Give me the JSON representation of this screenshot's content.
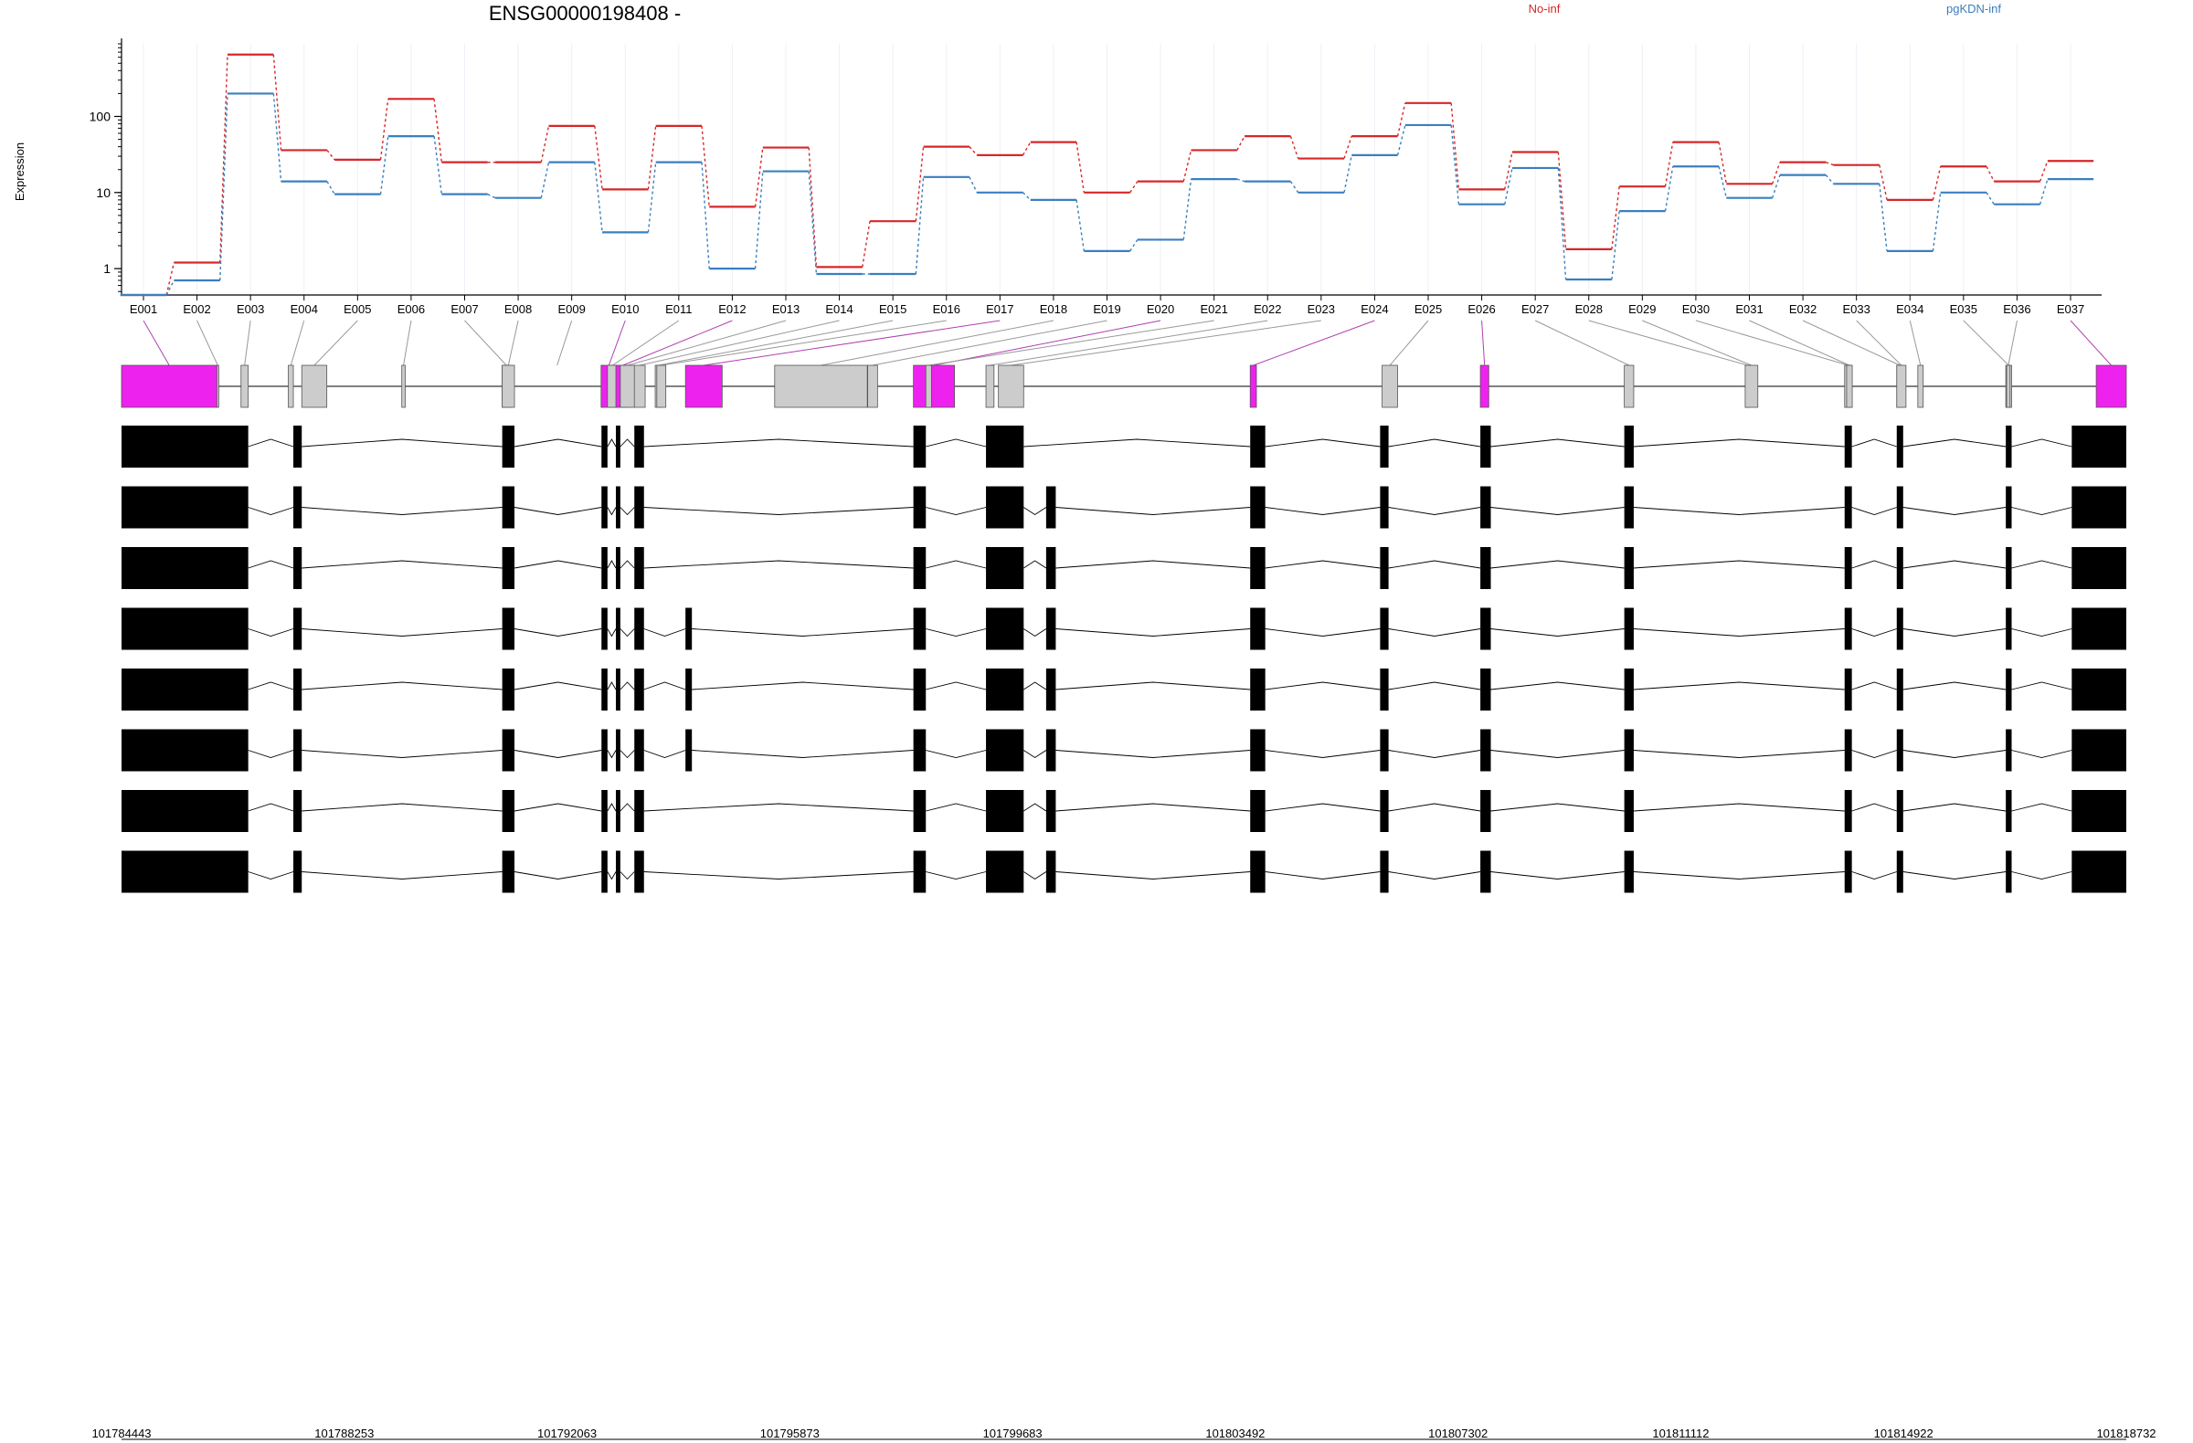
{
  "title": "ENSG00000198408 -",
  "colors": {
    "group1": "#d62728",
    "group2": "#3a7fbf",
    "highlight": "#ee22ee",
    "exon_default": "#cccccc",
    "transcript": "#000000"
  },
  "chart_data": {
    "type": "line",
    "ylabel": "Expression",
    "y_scale": "log",
    "y_ticks": [
      1,
      10,
      100
    ],
    "y_tick_labels": [
      "1",
      "10",
      "100"
    ],
    "legend": [
      {
        "name": "No-inf",
        "color": "#d62728"
      },
      {
        "name": "pgKDN-inf",
        "color": "#3a7fbf"
      }
    ],
    "categories": [
      "E001",
      "E002",
      "E003",
      "E004",
      "E005",
      "E006",
      "E007",
      "E008",
      "E009",
      "E010",
      "E011",
      "E012",
      "E013",
      "E014",
      "E015",
      "E016",
      "E017",
      "E018",
      "E019",
      "E020",
      "E021",
      "E022",
      "E023",
      "E024",
      "E025",
      "E026",
      "E027",
      "E028",
      "E029",
      "E030",
      "E031",
      "E032",
      "E033",
      "E034",
      "E035",
      "E036",
      "E037"
    ],
    "series": [
      {
        "name": "No-inf",
        "color": "#d62728",
        "values": [
          0.45,
          1.2,
          650,
          36,
          27,
          170,
          25,
          25,
          75,
          11,
          75,
          6.5,
          39,
          1.05,
          4.2,
          40,
          31,
          46,
          10,
          14,
          36,
          55,
          28,
          55,
          150,
          11,
          34,
          1.8,
          12,
          46,
          13,
          25,
          23,
          8,
          22,
          14,
          26
        ]
      },
      {
        "name": "pgKDN-inf",
        "color": "#3a7fbf",
        "values": [
          0.45,
          0.7,
          200,
          14,
          9.5,
          55,
          9.5,
          8.5,
          25,
          3,
          25,
          1,
          19,
          0.85,
          0.85,
          16,
          10,
          8,
          1.7,
          2.4,
          15,
          14,
          10,
          31,
          77,
          7,
          21,
          0.72,
          5.7,
          22,
          8.5,
          17,
          13,
          1.7,
          10,
          7,
          15
        ]
      }
    ],
    "exon_start": [
      0.0,
      0.0476,
      0.0596,
      0.0832,
      0.0899,
      0.1398,
      0.1899,
      0.1899,
      0.2394,
      0.2392,
      0.2424,
      0.2466,
      0.2488,
      0.2558,
      0.2662,
      0.267,
      0.2813,
      0.3258,
      0.3722,
      0.395,
      0.4012,
      0.4312,
      0.4374,
      0.563,
      0.6288,
      0.6778,
      0.7496,
      0.8099,
      0.8099,
      0.8595,
      0.8605,
      0.8855,
      0.8855,
      0.896,
      0.9399,
      0.9403,
      0.985
    ],
    "exon_end": [
      0.0476,
      0.0484,
      0.0632,
      0.0857,
      0.1024,
      0.1415,
      0.1941,
      0.196,
      0.1951,
      0.247,
      0.2475,
      0.2536,
      0.2562,
      0.2612,
      0.2694,
      0.2715,
      0.2996,
      0.372,
      0.3771,
      0.4155,
      0.404,
      0.4352,
      0.45,
      0.5661,
      0.6365,
      0.682,
      0.7543,
      0.8123,
      0.8162,
      0.8631,
      0.8633,
      0.8887,
      0.8901,
      0.8987,
      0.9428,
      0.942,
      1.0
    ],
    "highlight_exons": [
      "E001",
      "E010",
      "E012",
      "E017",
      "E020",
      "E024",
      "E026",
      "E037"
    ],
    "genome_start": 101784443,
    "genome_end": 101818732,
    "genome_tick_labels": [
      "101784443",
      "101788253",
      "101792063",
      "101795873",
      "101799683",
      "101803492",
      "101807302",
      "101811112",
      "101814922",
      "101818732"
    ],
    "transcripts": [
      [
        [
          0,
          0.0632
        ],
        [
          0.0857,
          0.0899
        ],
        [
          0.1899,
          0.196
        ],
        [
          0.2394,
          0.2424
        ],
        [
          0.2466,
          0.2488
        ],
        [
          0.2558,
          0.2606
        ],
        [
          0.395,
          0.4012
        ],
        [
          0.4312,
          0.45
        ],
        [
          0.563,
          0.5705
        ],
        [
          0.6278,
          0.632
        ],
        [
          0.6778,
          0.683
        ],
        [
          0.7496,
          0.7543
        ],
        [
          0.8595,
          0.8631
        ],
        [
          0.8855,
          0.8887
        ],
        [
          0.9399,
          0.9428
        ],
        [
          0.9728,
          1.0
        ]
      ],
      [
        [
          0,
          0.0632
        ],
        [
          0.0857,
          0.0899
        ],
        [
          0.1899,
          0.196
        ],
        [
          0.2394,
          0.2424
        ],
        [
          0.2466,
          0.2488
        ],
        [
          0.2558,
          0.2606
        ],
        [
          0.395,
          0.4012
        ],
        [
          0.4312,
          0.45
        ],
        [
          0.4612,
          0.466
        ],
        [
          0.563,
          0.5705
        ],
        [
          0.6278,
          0.632
        ],
        [
          0.6778,
          0.683
        ],
        [
          0.7496,
          0.7543
        ],
        [
          0.8595,
          0.8631
        ],
        [
          0.8855,
          0.8887
        ],
        [
          0.9399,
          0.9428
        ],
        [
          0.9728,
          1.0
        ]
      ],
      [
        [
          0,
          0.0632
        ],
        [
          0.0857,
          0.0899
        ],
        [
          0.1899,
          0.196
        ],
        [
          0.2394,
          0.2424
        ],
        [
          0.2466,
          0.2488
        ],
        [
          0.2558,
          0.2606
        ],
        [
          0.395,
          0.4012
        ],
        [
          0.4312,
          0.45
        ],
        [
          0.4612,
          0.466
        ],
        [
          0.563,
          0.5705
        ],
        [
          0.6278,
          0.632
        ],
        [
          0.6778,
          0.683
        ],
        [
          0.7496,
          0.7543
        ],
        [
          0.8595,
          0.8631
        ],
        [
          0.8855,
          0.8887
        ],
        [
          0.9399,
          0.9428
        ],
        [
          0.9728,
          1.0
        ]
      ],
      [
        [
          0,
          0.0632
        ],
        [
          0.0857,
          0.0899
        ],
        [
          0.1899,
          0.196
        ],
        [
          0.2394,
          0.2424
        ],
        [
          0.2466,
          0.2488
        ],
        [
          0.2558,
          0.2606
        ],
        [
          0.2813,
          0.2845
        ],
        [
          0.395,
          0.4012
        ],
        [
          0.4312,
          0.45
        ],
        [
          0.4612,
          0.466
        ],
        [
          0.563,
          0.5705
        ],
        [
          0.6278,
          0.632
        ],
        [
          0.6778,
          0.683
        ],
        [
          0.7496,
          0.7543
        ],
        [
          0.8595,
          0.8631
        ],
        [
          0.8855,
          0.8887
        ],
        [
          0.9399,
          0.9428
        ],
        [
          0.9728,
          1.0
        ]
      ],
      [
        [
          0,
          0.0632
        ],
        [
          0.0857,
          0.0899
        ],
        [
          0.1899,
          0.196
        ],
        [
          0.2394,
          0.2424
        ],
        [
          0.2466,
          0.2488
        ],
        [
          0.2558,
          0.2606
        ],
        [
          0.2813,
          0.2845
        ],
        [
          0.395,
          0.4012
        ],
        [
          0.4312,
          0.45
        ],
        [
          0.4612,
          0.466
        ],
        [
          0.563,
          0.5705
        ],
        [
          0.6278,
          0.632
        ],
        [
          0.6778,
          0.683
        ],
        [
          0.7496,
          0.7543
        ],
        [
          0.8595,
          0.8631
        ],
        [
          0.8855,
          0.8887
        ],
        [
          0.9399,
          0.9428
        ],
        [
          0.9728,
          1.0
        ]
      ],
      [
        [
          0,
          0.0632
        ],
        [
          0.0857,
          0.0899
        ],
        [
          0.1899,
          0.196
        ],
        [
          0.2394,
          0.2424
        ],
        [
          0.2466,
          0.2488
        ],
        [
          0.2558,
          0.2606
        ],
        [
          0.2813,
          0.2845
        ],
        [
          0.395,
          0.4012
        ],
        [
          0.4312,
          0.45
        ],
        [
          0.4612,
          0.466
        ],
        [
          0.563,
          0.5705
        ],
        [
          0.6278,
          0.632
        ],
        [
          0.6778,
          0.683
        ],
        [
          0.7496,
          0.7543
        ],
        [
          0.8595,
          0.8631
        ],
        [
          0.8855,
          0.8887
        ],
        [
          0.9399,
          0.9428
        ],
        [
          0.9728,
          1.0
        ]
      ],
      [
        [
          0,
          0.0632
        ],
        [
          0.0857,
          0.0899
        ],
        [
          0.1899,
          0.196
        ],
        [
          0.2394,
          0.2424
        ],
        [
          0.2466,
          0.2488
        ],
        [
          0.2558,
          0.2606
        ],
        [
          0.395,
          0.4012
        ],
        [
          0.4312,
          0.45
        ],
        [
          0.4612,
          0.466
        ],
        [
          0.563,
          0.5705
        ],
        [
          0.6278,
          0.632
        ],
        [
          0.6778,
          0.683
        ],
        [
          0.7496,
          0.7543
        ],
        [
          0.8595,
          0.8631
        ],
        [
          0.8855,
          0.8887
        ],
        [
          0.9399,
          0.9428
        ],
        [
          0.9728,
          1.0
        ]
      ],
      [
        [
          0,
          0.0632
        ],
        [
          0.0857,
          0.0899
        ],
        [
          0.1899,
          0.196
        ],
        [
          0.2394,
          0.2424
        ],
        [
          0.2466,
          0.2488
        ],
        [
          0.2558,
          0.2606
        ],
        [
          0.395,
          0.4012
        ],
        [
          0.4312,
          0.45
        ],
        [
          0.4612,
          0.466
        ],
        [
          0.563,
          0.5705
        ],
        [
          0.6278,
          0.632
        ],
        [
          0.6778,
          0.683
        ],
        [
          0.7496,
          0.7543
        ],
        [
          0.8595,
          0.8631
        ],
        [
          0.8855,
          0.8887
        ],
        [
          0.9399,
          0.9428
        ],
        [
          0.9728,
          1.0
        ]
      ]
    ]
  },
  "axis_labels": {
    "x_exons_note": "",
    "genome_axis": ""
  }
}
